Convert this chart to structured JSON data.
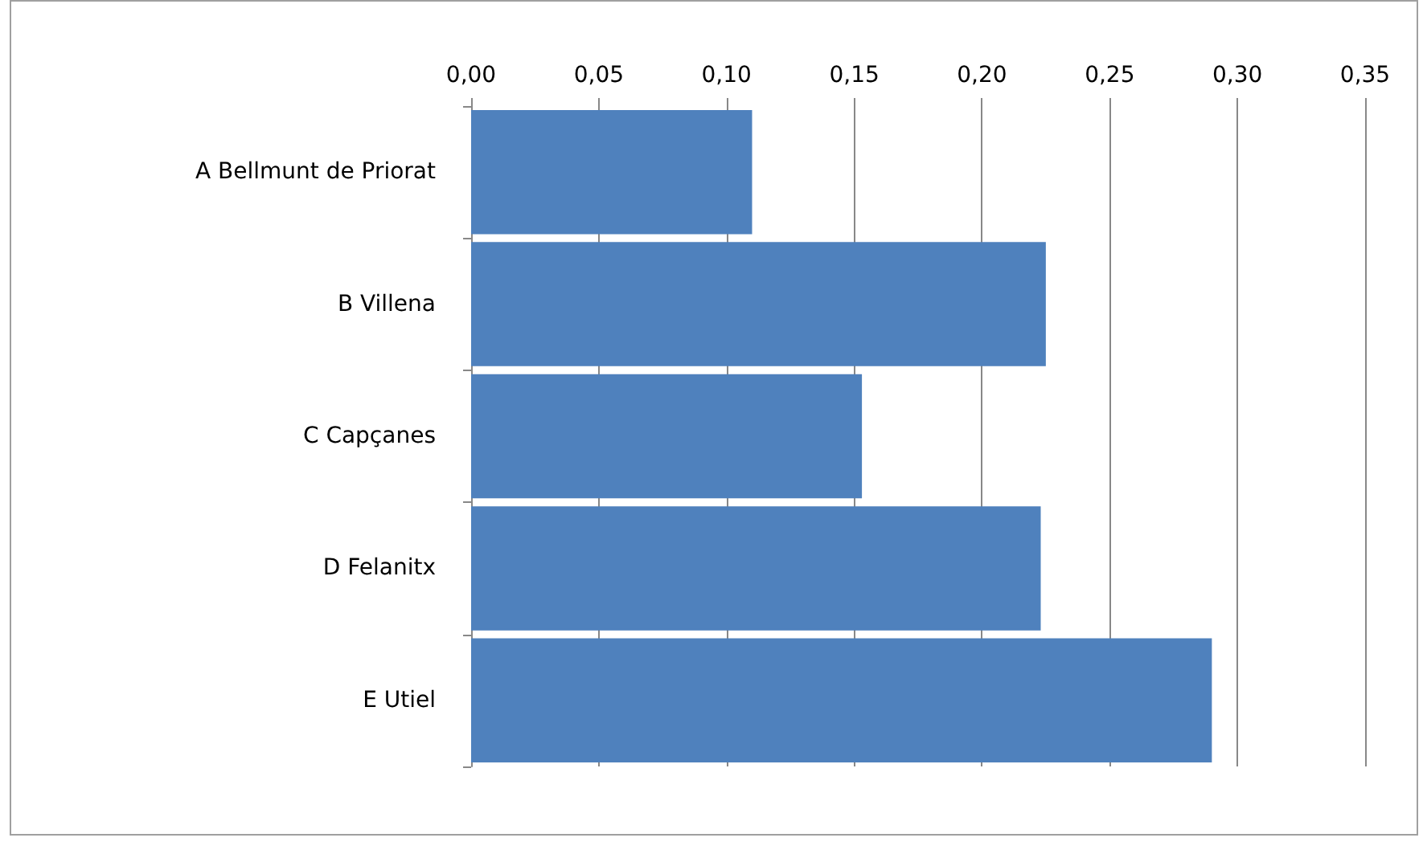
{
  "chart_data": {
    "type": "bar",
    "orientation": "horizontal",
    "categories": [
      "A Bellmunt de Priorat",
      "B Villena",
      "C Capçanes",
      "D Felanitx",
      "E Utiel"
    ],
    "values": [
      0.11,
      0.225,
      0.153,
      0.223,
      0.29
    ],
    "color": "#4f81bd",
    "xlim": [
      0,
      0.35
    ],
    "xticks": [
      {
        "value": 0,
        "label": "0,00"
      },
      {
        "value": 0.05,
        "label": "0,05"
      },
      {
        "value": 0.1,
        "label": "0,10"
      },
      {
        "value": 0.15,
        "label": "0,15"
      },
      {
        "value": 0.2,
        "label": "0,20"
      },
      {
        "value": 0.25,
        "label": "0,25"
      },
      {
        "value": 0.3,
        "label": "0,30"
      },
      {
        "value": 0.35,
        "label": "0,35"
      }
    ],
    "grid": "x"
  }
}
